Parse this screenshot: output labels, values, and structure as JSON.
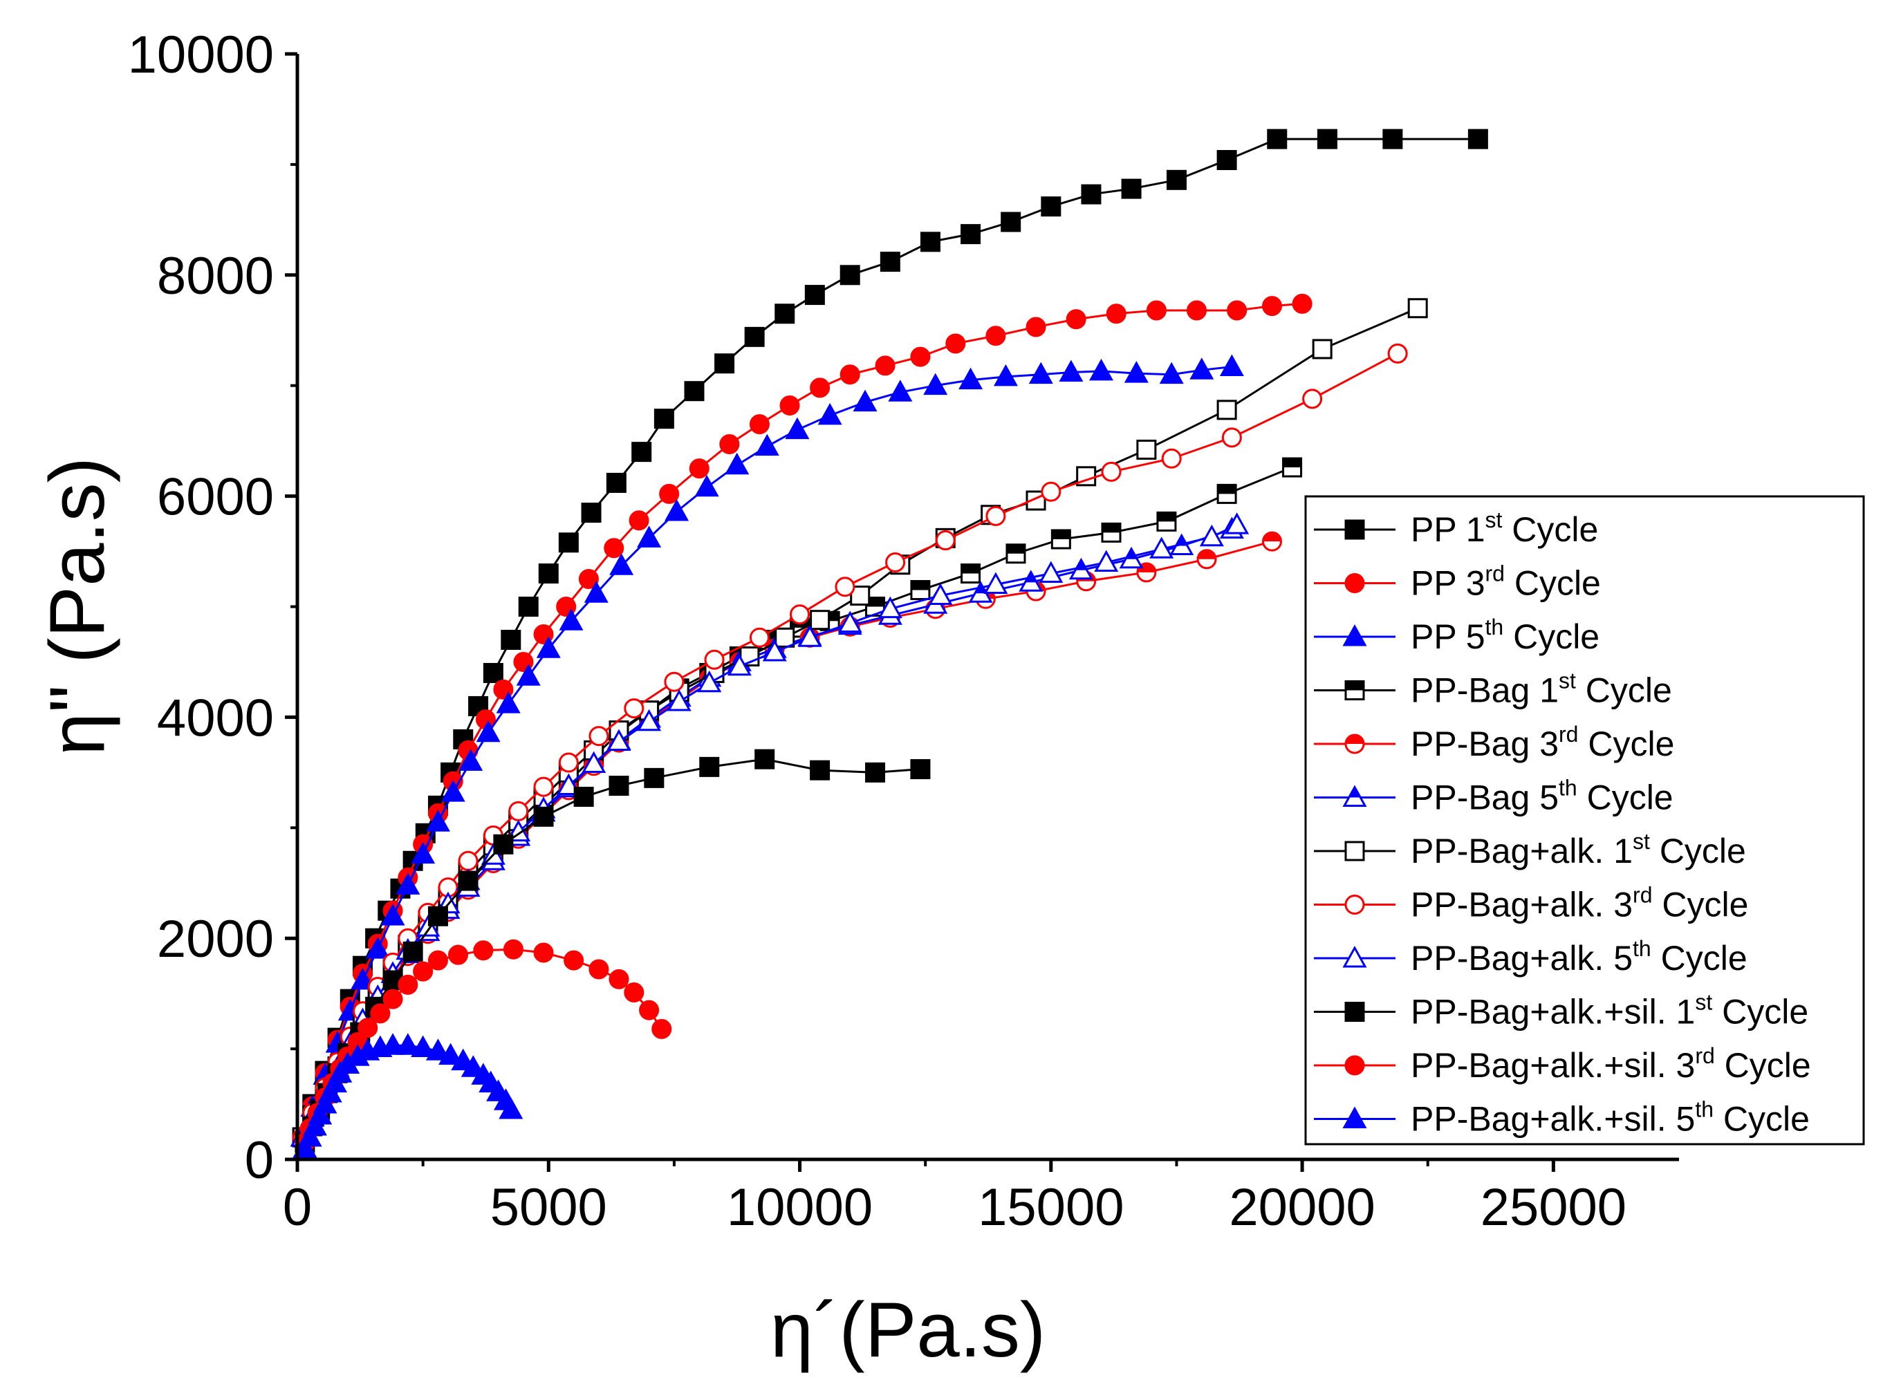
{
  "chart_data": {
    "type": "scatter",
    "xlabel": "η´(Pa.s)",
    "ylabel": "η\" (Pa.s)",
    "xlim": [
      0,
      27500
    ],
    "ylim": [
      0,
      10000
    ],
    "xticks": [
      0,
      5000,
      10000,
      15000,
      20000,
      25000
    ],
    "yticks": [
      0,
      2000,
      4000,
      6000,
      8000,
      10000
    ],
    "legend_position": "right",
    "colors": {
      "black": "#000000",
      "red": "#ff0000",
      "blue": "#0000ff"
    },
    "series": [
      {
        "name": "PP 1st Cycle",
        "name_base": "PP 1",
        "name_sup": "st",
        "name_rest": " Cycle",
        "color": "#000000",
        "marker": "square",
        "fill": "solid",
        "x": [
          100,
          300,
          550,
          800,
          1050,
          1300,
          1550,
          1800,
          2050,
          2300,
          2550,
          2800,
          3050,
          3300,
          3600,
          3900,
          4250,
          4600,
          5000,
          5400,
          5850,
          6350,
          6850,
          7300,
          7900,
          8500,
          9100,
          9700,
          10300,
          11000,
          11800,
          12600,
          13400,
          14200,
          15000,
          15800,
          16600,
          17500,
          18500,
          19500,
          20500,
          21800,
          23500
        ],
        "y": [
          200,
          500,
          800,
          1100,
          1450,
          1750,
          2000,
          2250,
          2450,
          2700,
          2950,
          3200,
          3500,
          3800,
          4100,
          4400,
          4700,
          5000,
          5300,
          5580,
          5850,
          6120,
          6400,
          6700,
          6950,
          7200,
          7440,
          7650,
          7820,
          8000,
          8120,
          8300,
          8370,
          8480,
          8620,
          8730,
          8780,
          8860,
          9040,
          9230,
          9230,
          9230,
          9230
        ]
      },
      {
        "name": "PP 3rd Cycle",
        "name_base": "PP 3",
        "name_sup": "rd",
        "name_rest": " Cycle",
        "color": "#ff0000",
        "marker": "circle",
        "fill": "solid",
        "x": [
          100,
          300,
          550,
          800,
          1050,
          1300,
          1600,
          1900,
          2200,
          2500,
          2800,
          3100,
          3400,
          3750,
          4100,
          4500,
          4900,
          5350,
          5800,
          6300,
          6800,
          7400,
          8000,
          8600,
          9200,
          9800,
          10400,
          11000,
          11700,
          12400,
          13100,
          13900,
          14700,
          15500,
          16300,
          17100,
          17900,
          18700,
          19400,
          20000
        ],
        "y": [
          200,
          480,
          780,
          1080,
          1380,
          1680,
          1950,
          2250,
          2550,
          2850,
          3130,
          3420,
          3700,
          3980,
          4250,
          4500,
          4750,
          5000,
          5250,
          5530,
          5780,
          6020,
          6250,
          6470,
          6650,
          6820,
          6980,
          7100,
          7180,
          7260,
          7380,
          7450,
          7530,
          7600,
          7650,
          7680,
          7680,
          7680,
          7720,
          7740
        ]
      },
      {
        "name": "PP 5th Cycle",
        "name_base": "PP 5",
        "name_sup": "th",
        "name_rest": " Cycle",
        "color": "#0000ff",
        "marker": "triangle",
        "fill": "solid",
        "x": [
          100,
          300,
          550,
          800,
          1050,
          1300,
          1600,
          1900,
          2200,
          2500,
          2800,
          3100,
          3450,
          3800,
          4200,
          4600,
          5000,
          5450,
          5950,
          6450,
          7000,
          7550,
          8150,
          8750,
          9350,
          9950,
          10600,
          11300,
          12000,
          12700,
          13400,
          14100,
          14800,
          15400,
          16000,
          16700,
          17400,
          18000,
          18600
        ],
        "y": [
          200,
          470,
          760,
          1050,
          1340,
          1620,
          1900,
          2200,
          2480,
          2760,
          3050,
          3320,
          3600,
          3860,
          4120,
          4370,
          4620,
          4870,
          5120,
          5370,
          5620,
          5860,
          6080,
          6280,
          6450,
          6600,
          6730,
          6850,
          6940,
          7000,
          7050,
          7080,
          7100,
          7120,
          7130,
          7110,
          7100,
          7140,
          7170
        ]
      },
      {
        "name": "PP-Bag 1st Cycle",
        "name_base": "PP-Bag 1",
        "name_sup": "st",
        "name_rest": " Cycle",
        "color": "#000000",
        "marker": "square",
        "fill": "half",
        "x": [
          100,
          300,
          550,
          800,
          1050,
          1300,
          1600,
          1900,
          2200,
          2600,
          3000,
          3400,
          3900,
          4400,
          4900,
          5400,
          5900,
          6400,
          7000,
          7600,
          8200,
          8800,
          9400,
          10000,
          10600,
          11500,
          12400,
          13400,
          14300,
          15200,
          16200,
          17300,
          18500,
          19800
        ],
        "y": [
          200,
          400,
          620,
          840,
          1060,
          1280,
          1500,
          1700,
          1900,
          2100,
          2300,
          2500,
          2750,
          2980,
          3200,
          3420,
          3640,
          3860,
          4060,
          4260,
          4400,
          4550,
          4700,
          4810,
          4870,
          5000,
          5150,
          5300,
          5480,
          5610,
          5670,
          5770,
          6020,
          6260
        ]
      },
      {
        "name": "PP-Bag 3rd Cycle",
        "name_base": "PP-Bag 3",
        "name_sup": "rd",
        "name_rest": " Cycle",
        "color": "#ff0000",
        "marker": "circle",
        "fill": "half",
        "x": [
          100,
          300,
          550,
          800,
          1050,
          1300,
          1600,
          1900,
          2200,
          2600,
          3000,
          3400,
          3900,
          4400,
          4900,
          5400,
          5900,
          6400,
          7000,
          7600,
          8200,
          8800,
          9500,
          10200,
          11000,
          11800,
          12700,
          13700,
          14700,
          15700,
          16900,
          18100,
          19400
        ],
        "y": [
          200,
          380,
          600,
          810,
          1020,
          1230,
          1440,
          1640,
          1840,
          2040,
          2240,
          2440,
          2680,
          2900,
          3120,
          3340,
          3560,
          3770,
          3970,
          4160,
          4350,
          4500,
          4620,
          4720,
          4820,
          4900,
          4980,
          5070,
          5140,
          5230,
          5310,
          5430,
          5590
        ]
      },
      {
        "name": "PP-Bag 5th Cycle",
        "name_base": "PP-Bag 5",
        "name_sup": "th",
        "name_rest": " Cycle",
        "color": "#0000ff",
        "marker": "triangle",
        "fill": "half",
        "x": [
          100,
          300,
          550,
          800,
          1050,
          1300,
          1600,
          1900,
          2200,
          2600,
          3000,
          3400,
          3900,
          4400,
          4900,
          5400,
          5900,
          6400,
          7000,
          7600,
          8200,
          8800,
          9500,
          10200,
          11000,
          11800,
          12700,
          13600,
          14600,
          15600,
          16600,
          17600,
          18600
        ],
        "y": [
          200,
          380,
          600,
          820,
          1040,
          1250,
          1460,
          1660,
          1860,
          2060,
          2260,
          2460,
          2700,
          2920,
          3140,
          3360,
          3580,
          3790,
          3990,
          4180,
          4360,
          4500,
          4620,
          4730,
          4830,
          4920,
          5020,
          5120,
          5220,
          5330,
          5430,
          5550,
          5700
        ]
      },
      {
        "name": "PP-Bag+alk. 1st Cycle",
        "name_base": "PP-Bag+alk. 1",
        "name_sup": "st",
        "name_rest": " Cycle",
        "color": "#000000",
        "marker": "square",
        "fill": "open",
        "x": [
          100,
          300,
          550,
          800,
          1050,
          1300,
          1600,
          1900,
          2200,
          2600,
          3000,
          3400,
          3900,
          4400,
          4900,
          5400,
          5900,
          6400,
          7000,
          7600,
          8300,
          9000,
          9700,
          10400,
          11200,
          12000,
          12900,
          13800,
          14700,
          15700,
          16900,
          18500,
          20400,
          22300
        ],
        "y": [
          200,
          400,
          620,
          840,
          1060,
          1280,
          1500,
          1720,
          1940,
          2160,
          2380,
          2600,
          2840,
          3060,
          3280,
          3500,
          3700,
          3880,
          4060,
          4230,
          4400,
          4550,
          4720,
          4880,
          5100,
          5380,
          5620,
          5830,
          5960,
          6180,
          6420,
          6780,
          7330,
          7700
        ]
      },
      {
        "name": "PP-Bag+alk. 3rd Cycle",
        "name_base": "PP-Bag+alk. 3",
        "name_sup": "rd",
        "name_rest": " Cycle",
        "color": "#ff0000",
        "marker": "circle",
        "fill": "open",
        "x": [
          100,
          300,
          550,
          800,
          1050,
          1300,
          1600,
          1900,
          2200,
          2600,
          3000,
          3400,
          3900,
          4400,
          4900,
          5400,
          6000,
          6700,
          7500,
          8300,
          9200,
          10000,
          10900,
          11900,
          12900,
          13900,
          15000,
          16200,
          17400,
          18600,
          20200,
          21900
        ],
        "y": [
          200,
          420,
          650,
          880,
          1110,
          1340,
          1560,
          1780,
          2000,
          2230,
          2460,
          2700,
          2930,
          3150,
          3370,
          3590,
          3830,
          4080,
          4320,
          4520,
          4720,
          4930,
          5180,
          5400,
          5600,
          5820,
          6040,
          6220,
          6340,
          6530,
          6880,
          7290
        ]
      },
      {
        "name": "PP-Bag+alk. 5th Cycle",
        "name_base": "PP-Bag+alk. 5",
        "name_sup": "th",
        "name_rest": " Cycle",
        "color": "#0000ff",
        "marker": "triangle",
        "fill": "open",
        "x": [
          100,
          300,
          550,
          800,
          1050,
          1300,
          1600,
          1900,
          2200,
          2600,
          3000,
          3400,
          3900,
          4400,
          4900,
          5400,
          5900,
          6400,
          7000,
          7600,
          8200,
          8800,
          9500,
          10200,
          11000,
          11800,
          12800,
          13900,
          15000,
          16100,
          17200,
          18200,
          18700
        ],
        "y": [
          200,
          390,
          610,
          830,
          1050,
          1260,
          1470,
          1680,
          1890,
          2100,
          2310,
          2520,
          2750,
          2960,
          3170,
          3380,
          3580,
          3780,
          3960,
          4140,
          4310,
          4460,
          4590,
          4720,
          4850,
          4980,
          5100,
          5200,
          5300,
          5400,
          5520,
          5630,
          5740
        ]
      },
      {
        "name": "PP-Bag+alk.+sil. 1st Cycle",
        "name_base": "PP-Bag+alk.+sil. 1",
        "name_sup": "st",
        "name_rest": " Cycle",
        "color": "#000000",
        "marker": "square",
        "fill": "solid",
        "x": [
          150,
          300,
          450,
          600,
          800,
          1000,
          1250,
          1550,
          1900,
          2300,
          2800,
          3400,
          4100,
          4900,
          5700,
          6400,
          7100,
          8200,
          9300,
          10400,
          11500,
          12400
        ],
        "y": [
          150,
          300,
          450,
          600,
          780,
          960,
          1150,
          1380,
          1620,
          1880,
          2200,
          2520,
          2850,
          3100,
          3280,
          3380,
          3450,
          3550,
          3620,
          3520,
          3500,
          3530
        ]
      },
      {
        "name": "PP-Bag+alk.+sil. 3rd Cycle",
        "name_base": "PP-Bag+alk.+sil. 3",
        "name_sup": "rd",
        "name_rest": " Cycle",
        "color": "#ff0000",
        "marker": "circle",
        "fill": "solid",
        "x": [
          150,
          250,
          400,
          550,
          700,
          850,
          1000,
          1200,
          1400,
          1650,
          1900,
          2200,
          2500,
          2800,
          3200,
          3700,
          4300,
          4900,
          5500,
          6000,
          6400,
          6700,
          7000,
          7250
        ],
        "y": [
          150,
          280,
          420,
          560,
          690,
          820,
          930,
          1060,
          1190,
          1320,
          1450,
          1580,
          1700,
          1800,
          1850,
          1890,
          1900,
          1870,
          1800,
          1720,
          1630,
          1510,
          1350,
          1180
        ]
      },
      {
        "name": "PP-Bag+alk.+sil. 5th Cycle",
        "name_base": "PP-Bag+alk.+sil. 5",
        "name_sup": "th",
        "name_rest": " Cycle",
        "color": "#0000ff",
        "marker": "triangle",
        "fill": "solid",
        "x": [
          150,
          250,
          350,
          450,
          550,
          650,
          750,
          850,
          1000,
          1200,
          1400,
          1650,
          1900,
          2200,
          2500,
          2800,
          3050,
          3300,
          3500,
          3700,
          3850,
          4000,
          4150,
          4250
        ],
        "y": [
          100,
          200,
          300,
          400,
          500,
          600,
          690,
          780,
          860,
          930,
          980,
          1010,
          1030,
          1030,
          1010,
          980,
          940,
          890,
          830,
          760,
          690,
          610,
          530,
          450
        ]
      }
    ]
  }
}
